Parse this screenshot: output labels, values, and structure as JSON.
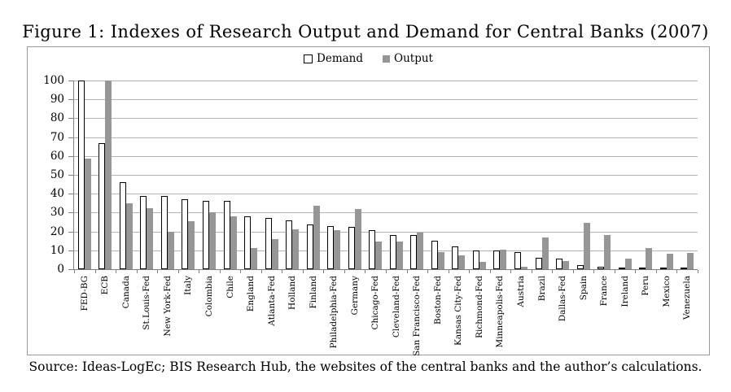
{
  "title": "Figure 1: Indexes of Research Output and Demand for Central Banks (2007)",
  "source": "Source: Ideas-LogEc; BIS Research Hub, the websites of the central banks and the author’s calculations.",
  "legend": {
    "demand": "Demand",
    "output": "Output"
  },
  "colors": {
    "demand_fill": "#ffffff",
    "demand_border": "#000000",
    "output_fill": "#969696",
    "gridline": "#b3b3b3",
    "axis": "#808080",
    "frame_border": "#9a9a9a"
  },
  "chart_data": {
    "type": "bar",
    "title": "Figure 1: Indexes of Research Output and Demand for Central Banks (2007)",
    "xlabel": "",
    "ylabel": "",
    "ylim": [
      0,
      100
    ],
    "ytick_step": 10,
    "grid": true,
    "legend_position": "top-center",
    "categories": [
      "FED-BG",
      "ECB",
      "Canada",
      "St.Louis-Fed",
      "New York-Fed",
      "Italy",
      "Colombia",
      "Chile",
      "England",
      "Atlanta-Fed",
      "Holland",
      "Finland",
      "Philadelphia-Fed",
      "Germany",
      "Chicago-Fed",
      "Cleveland-Fed",
      "San Francisco-Fed",
      "Boston-Fed",
      "Kansas City-Fed",
      "Richmond-Fed",
      "Minneapolis-Fed",
      "Austria",
      "Brazil",
      "Dallas-Fed",
      "Spain",
      "France",
      "Ireland",
      "Peru",
      "Mexico",
      "Venezuela"
    ],
    "series": [
      {
        "name": "Demand",
        "values": [
          100,
          67,
          46,
          39,
          39,
          37,
          36,
          36,
          28,
          27,
          26,
          23.5,
          23,
          22.5,
          20.5,
          18,
          18,
          15,
          12,
          10,
          10,
          9,
          6,
          5.5,
          2,
          1.5,
          0.5,
          1,
          0.5,
          0.5
        ]
      },
      {
        "name": "Output",
        "values": [
          58.5,
          100,
          35,
          32.5,
          20,
          25.5,
          30,
          28,
          11,
          16,
          21,
          33.5,
          20.5,
          32,
          14.5,
          14.5,
          19.5,
          9,
          7.5,
          4,
          10.5,
          1.5,
          17,
          4.5,
          24.5,
          18,
          5.5,
          11,
          8,
          8.5
        ]
      }
    ]
  }
}
